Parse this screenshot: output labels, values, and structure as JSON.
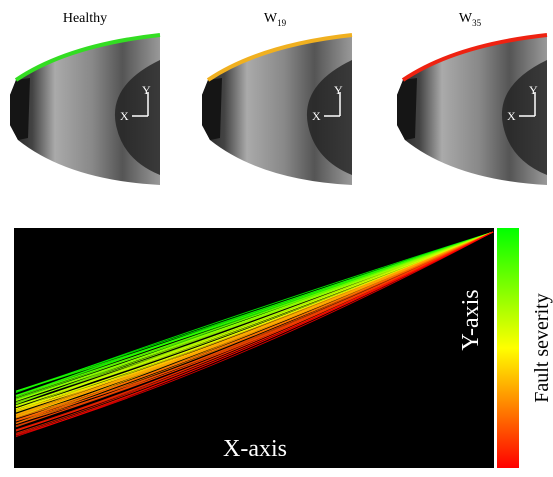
{
  "panels": [
    {
      "label": "Healthy",
      "edge": "#33dd22"
    },
    {
      "label": "W",
      "sub": "19",
      "edge": "#f0b020"
    },
    {
      "label": "W",
      "sub": "35",
      "edge": "#ee2211"
    }
  ],
  "axes_glyphs": {
    "y": "Y",
    "x": "X"
  },
  "plot": {
    "y_label": "Y-axis",
    "x_label": "X-axis",
    "colorbar_label": "Fault severity"
  }
}
